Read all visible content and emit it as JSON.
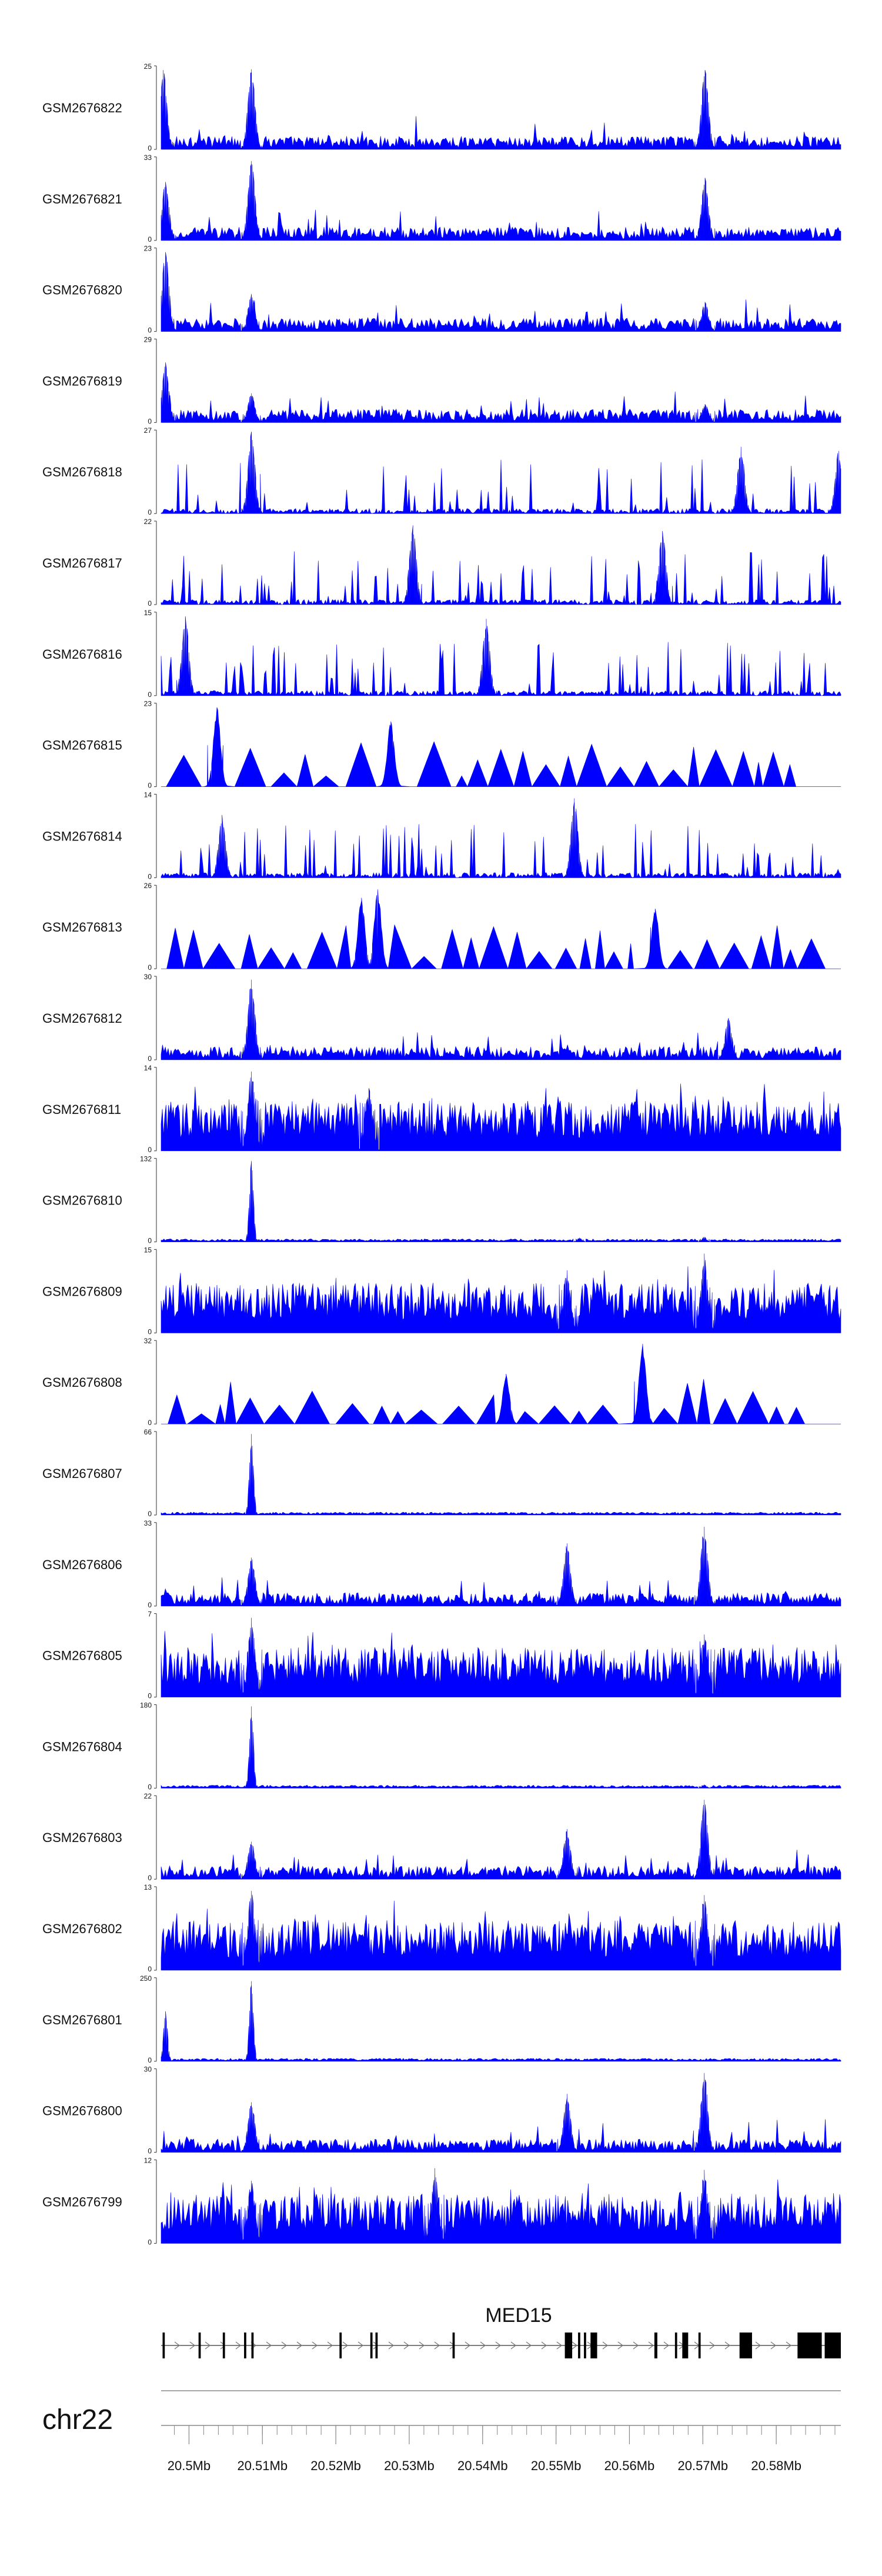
{
  "chart_data": {
    "type": "area",
    "color": "#0000ff",
    "x_range": [
      20.4962,
      20.5888
    ],
    "x_unit": "Mb",
    "tracks": [
      {
        "name": "GSM2676822",
        "ymax": "25",
        "ymin": "0",
        "profile": "broad",
        "peaks": [
          {
            "x": 20.4965,
            "h": 0.95
          },
          {
            "x": 20.5085,
            "h": 0.96
          },
          {
            "x": 20.5703,
            "h": 0.95
          }
        ]
      },
      {
        "name": "GSM2676821",
        "ymax": "33",
        "ymin": "0",
        "profile": "broad",
        "peaks": [
          {
            "x": 20.4968,
            "h": 0.7
          },
          {
            "x": 20.5085,
            "h": 0.95
          },
          {
            "x": 20.5703,
            "h": 0.75
          }
        ]
      },
      {
        "name": "GSM2676820",
        "ymax": "23",
        "ymin": "0",
        "profile": "broad",
        "peaks": [
          {
            "x": 20.4968,
            "h": 0.95
          },
          {
            "x": 20.5085,
            "h": 0.45
          },
          {
            "x": 20.5703,
            "h": 0.35
          }
        ]
      },
      {
        "name": "GSM2676819",
        "ymax": "29",
        "ymin": "0",
        "profile": "broad",
        "peaks": [
          {
            "x": 20.4968,
            "h": 0.72
          },
          {
            "x": 20.5085,
            "h": 0.35
          },
          {
            "x": 20.5703,
            "h": 0.22
          }
        ]
      },
      {
        "name": "GSM2676818",
        "ymax": "27",
        "ymin": "0",
        "profile": "spiky",
        "peaks": [
          {
            "x": 20.5085,
            "h": 0.98
          },
          {
            "x": 20.5752,
            "h": 0.8
          },
          {
            "x": 20.5885,
            "h": 0.75
          }
        ]
      },
      {
        "name": "GSM2676817",
        "ymax": "22",
        "ymin": "0",
        "profile": "spiky",
        "peaks": [
          {
            "x": 20.5305,
            "h": 0.95
          },
          {
            "x": 20.5645,
            "h": 0.88
          }
        ]
      },
      {
        "name": "GSM2676816",
        "ymax": "15",
        "ymin": "0",
        "profile": "spiky",
        "peaks": [
          {
            "x": 20.4995,
            "h": 0.95
          },
          {
            "x": 20.5405,
            "h": 0.92
          }
        ]
      },
      {
        "name": "GSM2676815",
        "ymax": "23",
        "ymin": "0",
        "profile": "triangles",
        "peaks": [
          {
            "x": 20.5038,
            "h": 0.95
          },
          {
            "x": 20.5275,
            "h": 0.78
          }
        ]
      },
      {
        "name": "GSM2676814",
        "ymax": "14",
        "ymin": "0",
        "profile": "spiky",
        "peaks": [
          {
            "x": 20.5525,
            "h": 0.95
          },
          {
            "x": 20.5045,
            "h": 0.75
          }
        ]
      },
      {
        "name": "GSM2676813",
        "ymax": "26",
        "ymin": "0",
        "profile": "triangles",
        "peaks": [
          {
            "x": 20.5257,
            "h": 0.95
          },
          {
            "x": 20.5235,
            "h": 0.85
          },
          {
            "x": 20.5635,
            "h": 0.72
          }
        ]
      },
      {
        "name": "GSM2676812",
        "ymax": "30",
        "ymin": "0",
        "profile": "broad",
        "peaks": [
          {
            "x": 20.5085,
            "h": 0.96
          },
          {
            "x": 20.5735,
            "h": 0.5
          }
        ]
      },
      {
        "name": "GSM2676811",
        "ymax": "14",
        "ymin": "0",
        "profile": "dense",
        "peaks": [
          {
            "x": 20.5085,
            "h": 0.95
          },
          {
            "x": 20.5245,
            "h": 0.75
          }
        ]
      },
      {
        "name": "GSM2676810",
        "ymax": "132",
        "ymin": "0",
        "profile": "flat",
        "peaks": [
          {
            "x": 20.5085,
            "h": 0.97
          },
          {
            "x": 20.5702,
            "h": 0.06
          },
          {
            "x": 20.5532,
            "h": 0.05
          }
        ]
      },
      {
        "name": "GSM2676809",
        "ymax": "15",
        "ymin": "0",
        "profile": "dense",
        "peaks": [
          {
            "x": 20.5702,
            "h": 0.95
          },
          {
            "x": 20.5515,
            "h": 0.75
          }
        ]
      },
      {
        "name": "GSM2676808",
        "ymax": "32",
        "ymin": "0",
        "profile": "triangles",
        "peaks": [
          {
            "x": 20.5618,
            "h": 0.96
          },
          {
            "x": 20.5432,
            "h": 0.6
          }
        ]
      },
      {
        "name": "GSM2676807",
        "ymax": "66",
        "ymin": "0",
        "profile": "flat",
        "peaks": [
          {
            "x": 20.5085,
            "h": 0.97
          }
        ]
      },
      {
        "name": "GSM2676806",
        "ymax": "33",
        "ymin": "0",
        "profile": "broad",
        "peaks": [
          {
            "x": 20.5702,
            "h": 0.95
          },
          {
            "x": 20.5515,
            "h": 0.75
          },
          {
            "x": 20.5085,
            "h": 0.58
          }
        ]
      },
      {
        "name": "GSM2676805",
        "ymax": "7",
        "ymin": "0",
        "profile": "dense",
        "peaks": [
          {
            "x": 20.5085,
            "h": 0.95
          },
          {
            "x": 20.5702,
            "h": 0.75
          }
        ]
      },
      {
        "name": "GSM2676804",
        "ymax": "180",
        "ymin": "0",
        "profile": "flat",
        "peaks": [
          {
            "x": 20.5085,
            "h": 0.98
          },
          {
            "x": 20.5702,
            "h": 0.04
          }
        ]
      },
      {
        "name": "GSM2676803",
        "ymax": "22",
        "ymin": "0",
        "profile": "broad",
        "peaks": [
          {
            "x": 20.5702,
            "h": 0.95
          },
          {
            "x": 20.5515,
            "h": 0.6
          },
          {
            "x": 20.5085,
            "h": 0.45
          }
        ]
      },
      {
        "name": "GSM2676802",
        "ymax": "13",
        "ymin": "0",
        "profile": "dense",
        "peaks": [
          {
            "x": 20.5085,
            "h": 0.95
          },
          {
            "x": 20.5702,
            "h": 0.9
          }
        ]
      },
      {
        "name": "GSM2676801",
        "ymax": "250",
        "ymin": "0",
        "profile": "flat",
        "peaks": [
          {
            "x": 20.4968,
            "h": 0.6
          },
          {
            "x": 20.5085,
            "h": 0.96
          }
        ]
      },
      {
        "name": "GSM2676800",
        "ymax": "30",
        "ymin": "0",
        "profile": "broad",
        "peaks": [
          {
            "x": 20.5702,
            "h": 0.95
          },
          {
            "x": 20.5515,
            "h": 0.7
          },
          {
            "x": 20.5085,
            "h": 0.6
          }
        ]
      },
      {
        "name": "GSM2676799",
        "ymax": "12",
        "ymin": "0",
        "profile": "dense",
        "peaks": [
          {
            "x": 20.5335,
            "h": 0.9
          },
          {
            "x": 20.5702,
            "h": 0.88
          },
          {
            "x": 20.5085,
            "h": 0.75
          }
        ]
      }
    ],
    "gene": {
      "name": "MED15",
      "start": 20.4962,
      "end": 20.5888,
      "exons": [
        {
          "start": 20.4964,
          "end": 20.4967
        },
        {
          "start": 20.5013,
          "end": 20.5016
        },
        {
          "start": 20.5046,
          "end": 20.5049
        },
        {
          "start": 20.5075,
          "end": 20.5078
        },
        {
          "start": 20.5085,
          "end": 20.5088
        },
        {
          "start": 20.5205,
          "end": 20.5208
        },
        {
          "start": 20.5247,
          "end": 20.525
        },
        {
          "start": 20.5254,
          "end": 20.5257
        },
        {
          "start": 20.5359,
          "end": 20.5362
        },
        {
          "start": 20.5512,
          "end": 20.5522
        },
        {
          "start": 20.553,
          "end": 20.5533
        },
        {
          "start": 20.5538,
          "end": 20.5541
        },
        {
          "start": 20.5547,
          "end": 20.5556
        },
        {
          "start": 20.5634,
          "end": 20.5638
        },
        {
          "start": 20.5662,
          "end": 20.5665
        },
        {
          "start": 20.5672,
          "end": 20.568
        },
        {
          "start": 20.5694,
          "end": 20.5697
        },
        {
          "start": 20.575,
          "end": 20.5767
        },
        {
          "start": 20.5829,
          "end": 20.5862
        },
        {
          "start": 20.5866,
          "end": 20.5888
        }
      ]
    },
    "axis": {
      "chromosome": "chr22",
      "tick_labels": [
        "20.5Mb",
        "20.51Mb",
        "20.52Mb",
        "20.53Mb",
        "20.54Mb",
        "20.55Mb",
        "20.56Mb",
        "20.57Mb",
        "20.58Mb"
      ],
      "tick_values": [
        20.5,
        20.51,
        20.52,
        20.53,
        20.54,
        20.55,
        20.56,
        20.57,
        20.58
      ],
      "minor_step": 0.002
    }
  }
}
